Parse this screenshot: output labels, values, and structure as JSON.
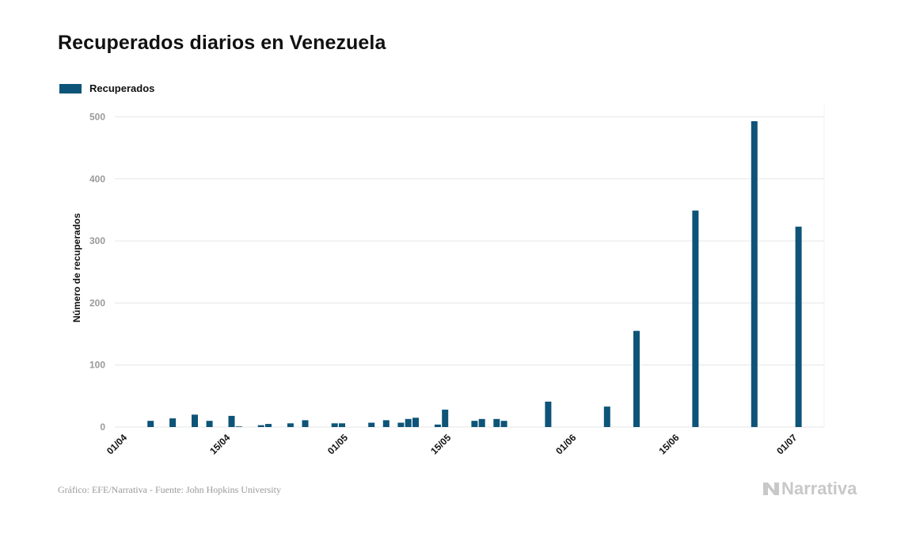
{
  "title": "Recuperados diarios en Venezuela",
  "footer": "Gráfico: EFE/Narrativa - Fuente: John Hopkins University",
  "brand": {
    "name": "Narrativa",
    "icon": "narrativa-logo-icon"
  },
  "colors": {
    "bar": "#0d5478",
    "grid": "#e6e6e6",
    "axis_tick": "#9a9a9a",
    "text": "#111111"
  },
  "chart_data": {
    "type": "bar",
    "title": "Recuperados diarios en Venezuela",
    "xlabel": "",
    "ylabel": "Número de recuperados",
    "ylim": [
      0,
      500
    ],
    "yticks": [
      0,
      100,
      200,
      300,
      400,
      500
    ],
    "grid": true,
    "legend": {
      "position": "top-left",
      "entries": [
        "Recuperados"
      ]
    },
    "x_tick_labels": [
      {
        "label": "01/04",
        "day": 0
      },
      {
        "label": "15/04",
        "day": 14
      },
      {
        "label": "01/05",
        "day": 30
      },
      {
        "label": "15/05",
        "day": 44
      },
      {
        "label": "01/06",
        "day": 61
      },
      {
        "label": "15/06",
        "day": 75
      },
      {
        "label": "01/07",
        "day": 91
      }
    ],
    "day_range": [
      0,
      93
    ],
    "series": [
      {
        "name": "Recuperados",
        "points": [
          {
            "day": 4,
            "value": 10
          },
          {
            "day": 7,
            "value": 14
          },
          {
            "day": 10,
            "value": 20
          },
          {
            "day": 12,
            "value": 10
          },
          {
            "day": 15,
            "value": 18
          },
          {
            "day": 16,
            "value": 1
          },
          {
            "day": 19,
            "value": 3
          },
          {
            "day": 20,
            "value": 5
          },
          {
            "day": 23,
            "value": 6
          },
          {
            "day": 25,
            "value": 11
          },
          {
            "day": 29,
            "value": 6
          },
          {
            "day": 30,
            "value": 6
          },
          {
            "day": 34,
            "value": 7
          },
          {
            "day": 36,
            "value": 11
          },
          {
            "day": 38,
            "value": 7
          },
          {
            "day": 39,
            "value": 13
          },
          {
            "day": 40,
            "value": 15
          },
          {
            "day": 43,
            "value": 4
          },
          {
            "day": 44,
            "value": 28
          },
          {
            "day": 48,
            "value": 10
          },
          {
            "day": 49,
            "value": 13
          },
          {
            "day": 51,
            "value": 13
          },
          {
            "day": 52,
            "value": 10
          },
          {
            "day": 58,
            "value": 41
          },
          {
            "day": 66,
            "value": 33
          },
          {
            "day": 70,
            "value": 155
          },
          {
            "day": 78,
            "value": 349
          },
          {
            "day": 86,
            "value": 493
          },
          {
            "day": 92,
            "value": 323
          }
        ]
      }
    ]
  }
}
